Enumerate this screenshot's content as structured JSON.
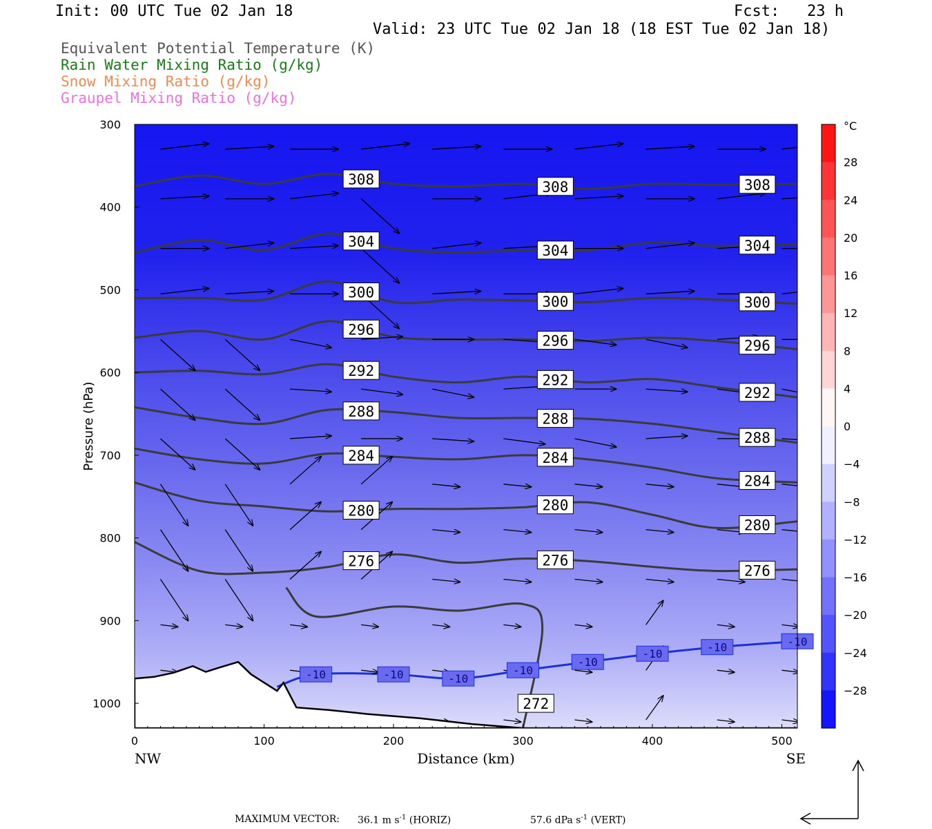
{
  "header": {
    "init": "Init: 00 UTC Tue 02 Jan 18",
    "fcst": "Fcst:   23 h",
    "valid": "Valid: 23 UTC Tue 02 Jan 18 (18 EST Tue 02 Jan 18)"
  },
  "legend": [
    {
      "text": "Equivalent Potential Temperature (K)",
      "color": "#555555"
    },
    {
      "text": "Rain Water Mixing Ratio (g/kg)",
      "color": "#1a7a1a"
    },
    {
      "text": "Snow Mixing Ratio (g/kg)",
      "color": "#f08a50"
    },
    {
      "text": "Graupel Mixing Ratio (g/kg)",
      "color": "#f070e0"
    }
  ],
  "colorbar": {
    "unit": "°C",
    "ticks": [
      28,
      24,
      20,
      16,
      12,
      8,
      4,
      0,
      -4,
      -8,
      -12,
      -16,
      -20,
      -24,
      -28
    ]
  },
  "footer": {
    "label": "MAXIMUM VECTOR:",
    "horiz_value": "36.1 m s",
    "horiz_unit": "(HORIZ)",
    "vert_value": "57.6 dPa s",
    "vert_unit": "(VERT)",
    "exp": "-1"
  },
  "chart_data": {
    "type": "cross-section",
    "xlabel": "Distance (km)",
    "ylabel": "Pressure (hPa)",
    "xlim": [
      0,
      512
    ],
    "ylim": [
      1030,
      300
    ],
    "x_ticks": [
      0,
      100,
      200,
      300,
      400,
      500
    ],
    "y_ticks": [
      300,
      400,
      500,
      600,
      700,
      800,
      900,
      1000
    ],
    "x_end_labels": {
      "left": "NW",
      "right": "SE"
    },
    "theta_e_contours": [
      {
        "value": 308,
        "x": [
          0,
          50,
          100,
          150,
          200,
          250,
          300,
          350,
          400,
          450,
          512
        ],
        "p": [
          375,
          362,
          372,
          360,
          372,
          375,
          372,
          378,
          372,
          373,
          372
        ]
      },
      {
        "value": 304,
        "x": [
          0,
          50,
          100,
          150,
          200,
          250,
          300,
          350,
          400,
          450,
          512
        ],
        "p": [
          455,
          440,
          452,
          432,
          450,
          455,
          452,
          452,
          443,
          447,
          445
        ]
      },
      {
        "value": 300,
        "x": [
          0,
          50,
          100,
          150,
          200,
          250,
          300,
          350,
          400,
          450,
          512
        ],
        "p": [
          510,
          510,
          512,
          490,
          515,
          512,
          513,
          515,
          510,
          512,
          517
        ]
      },
      {
        "value": 296,
        "x": [
          0,
          50,
          100,
          150,
          200,
          250,
          300,
          350,
          400,
          450,
          512
        ],
        "p": [
          558,
          550,
          560,
          538,
          557,
          560,
          560,
          562,
          558,
          562,
          572
        ]
      },
      {
        "value": 292,
        "x": [
          0,
          50,
          100,
          150,
          200,
          250,
          300,
          350,
          400,
          450,
          512
        ],
        "p": [
          600,
          598,
          602,
          590,
          605,
          612,
          605,
          612,
          608,
          618,
          630
        ]
      },
      {
        "value": 288,
        "x": [
          0,
          50,
          100,
          150,
          200,
          250,
          300,
          350,
          400,
          450,
          512
        ],
        "p": [
          642,
          655,
          662,
          645,
          648,
          655,
          655,
          656,
          662,
          672,
          685
        ]
      },
      {
        "value": 284,
        "x": [
          0,
          50,
          100,
          150,
          200,
          250,
          300,
          350,
          400,
          450,
          512
        ],
        "p": [
          692,
          705,
          710,
          698,
          702,
          705,
          700,
          705,
          715,
          728,
          733
        ]
      },
      {
        "value": 280,
        "x": [
          0,
          50,
          100,
          150,
          200,
          250,
          300,
          350,
          400,
          450,
          512
        ],
        "p": [
          733,
          755,
          762,
          768,
          765,
          765,
          763,
          757,
          772,
          788,
          780
        ]
      },
      {
        "value": 276,
        "x": [
          0,
          50,
          100,
          150,
          200,
          250,
          300,
          350,
          400,
          450,
          512
        ],
        "p": [
          805,
          840,
          842,
          835,
          820,
          830,
          825,
          828,
          835,
          840,
          838
        ]
      },
      {
        "value": 272,
        "x": [
          117,
          140,
          200,
          250,
          300,
          315,
          300
        ],
        "p": [
          860,
          895,
          883,
          888,
          880,
          910,
          1030
        ]
      }
    ],
    "isotherm_minus10": {
      "value": -10,
      "x": [
        110,
        140,
        200,
        250,
        300,
        350,
        400,
        450,
        512
      ],
      "p": [
        980,
        965,
        965,
        970,
        960,
        950,
        940,
        932,
        925
      ]
    },
    "terrain": {
      "x": [
        0,
        15,
        30,
        45,
        55,
        65,
        80,
        90,
        110,
        115,
        125,
        150,
        180,
        220,
        260,
        300,
        350,
        400,
        450,
        512
      ],
      "p": [
        970,
        968,
        963,
        955,
        962,
        957,
        950,
        965,
        985,
        975,
        1005,
        1008,
        1013,
        1018,
        1025,
        1030,
        1030,
        1030,
        1030,
        1030
      ]
    },
    "temperature_shading": {
      "variable": "temperature",
      "unit": "°C",
      "range": [
        -30,
        0
      ]
    }
  }
}
